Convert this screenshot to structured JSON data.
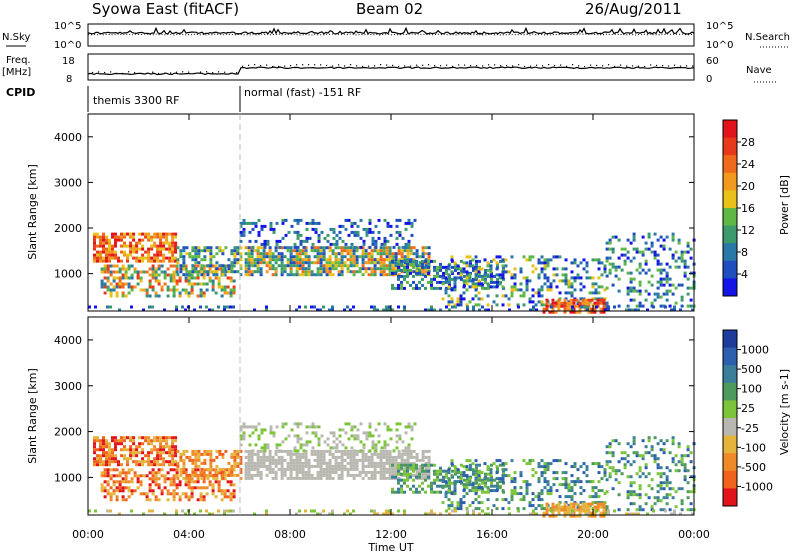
{
  "header": {
    "station": "Syowa East (fitACF)",
    "beam": "Beam 02",
    "date": "26/Aug/2011"
  },
  "top_panels": {
    "nsky_label": "N.Sky",
    "nsky_ticks": [
      "10^5",
      "10^0"
    ],
    "nsearch_label": "N.Search",
    "nsearch_ticks": [
      "10^5",
      "10^0"
    ],
    "freq_label_1": "Freq.",
    "freq_label_2": "[MHz]",
    "freq_ticks": [
      "18",
      "8"
    ],
    "nave_label": "Nave",
    "nave_ticks": [
      "60",
      "0"
    ],
    "cpid_label": "CPID",
    "cpid_segments": [
      "themis 3300 RF",
      "normal (fast) -151 RF"
    ]
  },
  "chart_data": [
    {
      "type": "heatmap",
      "name": "power",
      "ylabel": "Slant Range [km]",
      "xlabel": "",
      "ylim": [
        180,
        4500
      ],
      "yticks": [
        "1000",
        "2000",
        "3000",
        "4000"
      ],
      "colorbar_label": "Power [dB]",
      "colorbar_ticks": [
        "4",
        "8",
        "12",
        "16",
        "20",
        "24",
        "28"
      ],
      "colorbar_colors": [
        "#1414e6",
        "#1f4fbf",
        "#2a78a8",
        "#3c9a6c",
        "#5fb845",
        "#e8c21a",
        "#f39a1e",
        "#f06a1c",
        "#e83a1a",
        "#e0141a"
      ]
    },
    {
      "type": "heatmap",
      "name": "velocity",
      "ylabel": "Slant Range [km]",
      "xlabel": "Time UT",
      "ylim": [
        180,
        4500
      ],
      "yticks": [
        "1000",
        "2000",
        "3000",
        "4000"
      ],
      "xticks": [
        "00:00",
        "04:00",
        "08:00",
        "12:00",
        "16:00",
        "20:00",
        "00:00"
      ],
      "colorbar_label": "Velocity [m s-1]",
      "colorbar_ticks": [
        "1000",
        "500",
        "100",
        "25",
        "-25",
        "-100",
        "-500",
        "-1000"
      ],
      "colorbar_colors": [
        "#1e3c9c",
        "#2c5fae",
        "#3a7f9a",
        "#4e9a5e",
        "#7cc43a",
        "#b8b8b0",
        "#e6b43c",
        "#f08a28",
        "#f0621e",
        "#e0141a"
      ]
    }
  ]
}
